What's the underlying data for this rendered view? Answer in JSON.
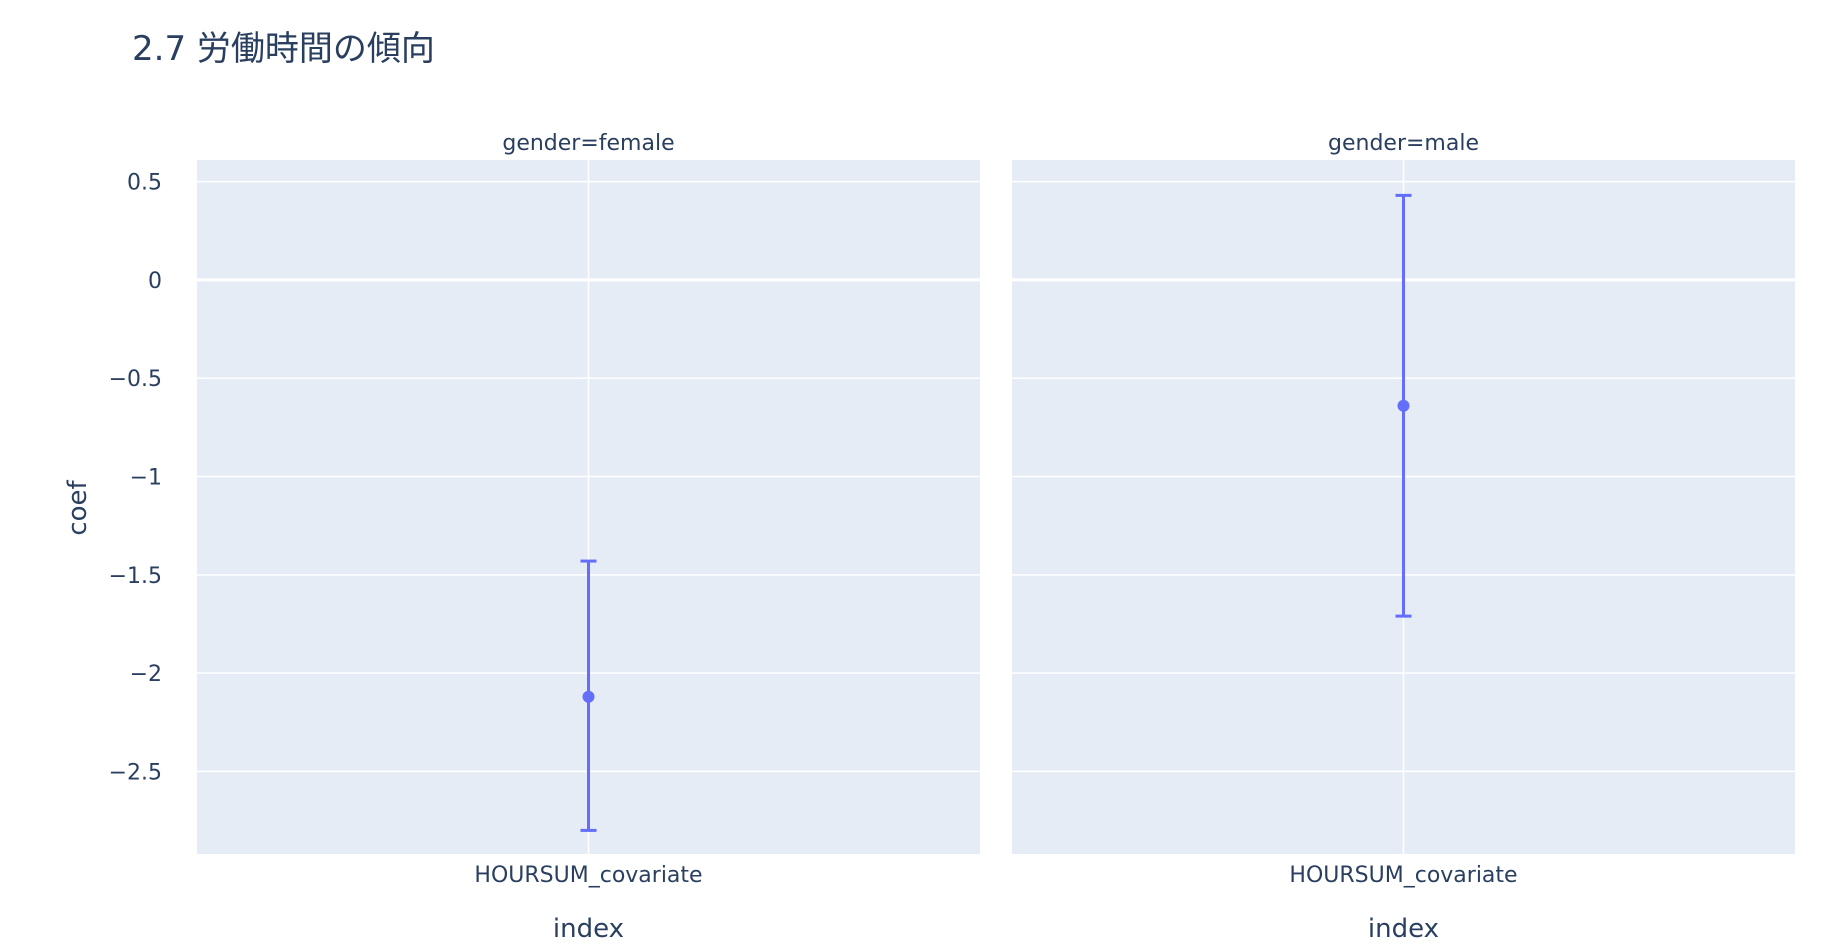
{
  "chart_data": {
    "type": "scatter",
    "title": "2.7 労働時間の傾向",
    "ylabel": "coef",
    "xlabel": "index",
    "ylim": [
      -2.92,
      0.61
    ],
    "yticks": [
      {
        "value": 0.5,
        "label": "0.5"
      },
      {
        "value": 0,
        "label": "0"
      },
      {
        "value": -0.5,
        "label": "−0.5"
      },
      {
        "value": -1,
        "label": "−1"
      },
      {
        "value": -1.5,
        "label": "−1.5"
      },
      {
        "value": -2,
        "label": "−2"
      },
      {
        "value": -2.5,
        "label": "−2.5"
      }
    ],
    "marker_color": "#636efa",
    "plot_bg": "#e5ecf6",
    "grid": true,
    "facets": [
      {
        "title": "gender=female",
        "category": "HOURSUM_covariate",
        "coef": -2.12,
        "ci_low": -2.8,
        "ci_high": -1.43
      },
      {
        "title": "gender=male",
        "category": "HOURSUM_covariate",
        "coef": -0.64,
        "ci_low": -1.71,
        "ci_high": 0.43
      }
    ]
  }
}
